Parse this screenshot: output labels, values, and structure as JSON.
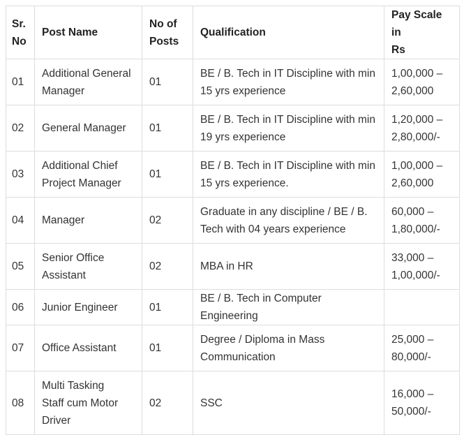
{
  "table": {
    "headers": [
      "Sr.\nNo",
      "Post Name",
      "No of\nPosts",
      "Qualification",
      "Pay Scale in\nRs"
    ],
    "rows": [
      {
        "sr": "01",
        "post": "Additional General\nManager",
        "posts": "01",
        "qualification": "BE  / B. Tech in IT Discipline with min\n15 yrs experience",
        "pay": " 1,00,000 –\n2,60,000"
      },
      {
        "sr": "02",
        "post": "General Manager",
        "posts": "01",
        "qualification": "BE  / B. Tech in IT Discipline with min\n19 yrs experience",
        "pay": "1,20,000 –\n2,80,000/-"
      },
      {
        "sr": "03",
        "post": "Additional Chief\nProject Manager",
        "posts": "01",
        "qualification": "BE  / B. Tech in IT Discipline with min\n15 yrs experience.",
        "pay": " 1,00,000 –\n2,60,000"
      },
      {
        "sr": "04",
        "post": "Manager",
        "posts": "02",
        "qualification": "Graduate in any discipline / BE / B.\nTech with 04 years experience",
        "pay": "60,000 –\n1,80,000/-"
      },
      {
        "sr": "05",
        "post": "Senior Office\nAssistant",
        "posts": "02",
        "qualification": "MBA in HR",
        "pay": "33,000 –\n1,00,000/-"
      },
      {
        "sr": "06",
        "post": "Junior Engineer",
        "posts": "01",
        "qualification": "BE / B. Tech in Computer Engineering",
        "pay": ""
      },
      {
        "sr": "07",
        "post": "Office Assistant",
        "posts": "01",
        "qualification": "Degree / Diploma in Mass\nCommunication",
        "pay": "25,000 –\n80,000/-"
      },
      {
        "sr": "08",
        "post": "Multi Tasking\nStaff cum Motor\nDriver",
        "posts": "02",
        "qualification": "SSC",
        "pay": "16,000 –\n50,000/-"
      }
    ]
  }
}
